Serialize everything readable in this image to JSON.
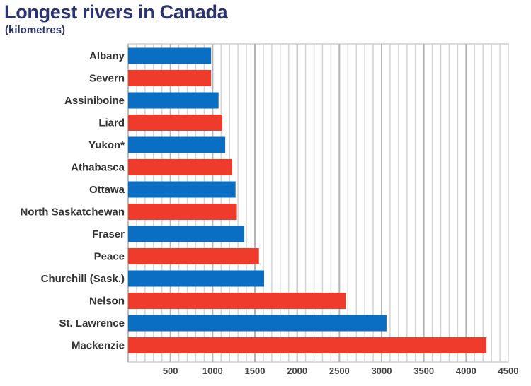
{
  "chart_data": {
    "type": "bar",
    "orientation": "horizontal",
    "title": "Longest rivers in Canada",
    "subtitle": "(kilometres)",
    "xlabel": "",
    "ylabel": "",
    "xlim": [
      0,
      4500
    ],
    "minor_grid_step": 100,
    "major_grid_step": 500,
    "grid": true,
    "categories": [
      "Albany",
      "Severn",
      "Assiniboine",
      "Liard",
      "Yukon*",
      "Athabasca",
      "Ottawa",
      "North Saskatchewan",
      "Fraser",
      "Peace",
      "Churchill (Sask.)",
      "Nelson",
      "St. Lawrence",
      "Mackenzie"
    ],
    "values": [
      982,
      982,
      1070,
      1115,
      1149,
      1231,
      1271,
      1287,
      1375,
      1548,
      1609,
      2575,
      3058,
      4241
    ],
    "x_tick_labels": [
      "500",
      "1000",
      "1500",
      "2000",
      "2500",
      "3000",
      "3500",
      "4000",
      "4500"
    ],
    "x_ticks": [
      500,
      1000,
      1500,
      2000,
      2500,
      3000,
      3500,
      4000,
      4500
    ],
    "colors": [
      "#0a6ec2",
      "#ee3b2c"
    ]
  }
}
